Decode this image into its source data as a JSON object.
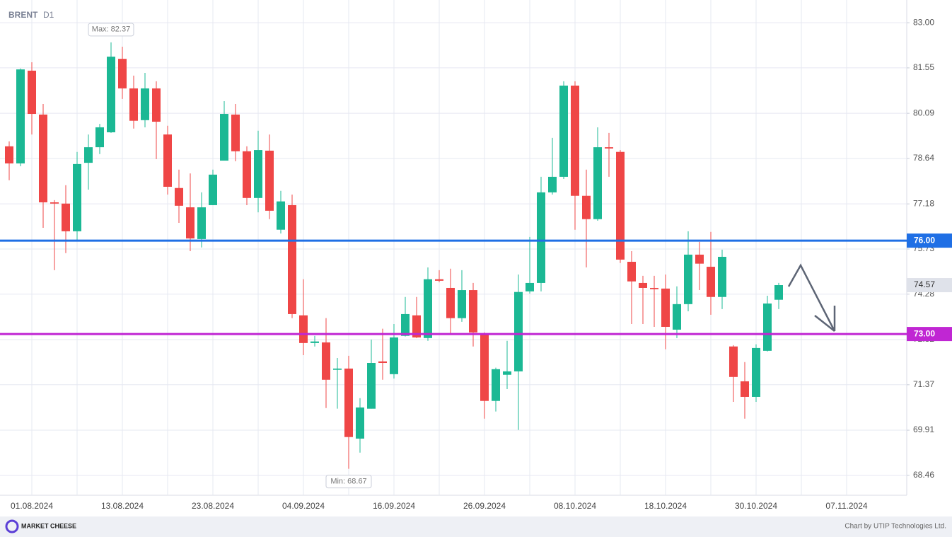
{
  "chart_data": {
    "type": "candlestick",
    "title": "BRENT",
    "subtitle": "D1",
    "categories": [
      null,
      null,
      "01.08.2024",
      null,
      null,
      null,
      null,
      null,
      null,
      null,
      "13.08.2024",
      null,
      null,
      null,
      null,
      null,
      null,
      null,
      "23.08.2024",
      null,
      null,
      null,
      null,
      null,
      null,
      null,
      "04.09.2024",
      null,
      null,
      null,
      null,
      null,
      null,
      null,
      "16.09.2024",
      null,
      null,
      null,
      null,
      null,
      null,
      null,
      "26.09.2024",
      null,
      null,
      null,
      null,
      null,
      null,
      null,
      "08.10.2024",
      null,
      null,
      null,
      null,
      null,
      null,
      null,
      "18.10.2024",
      null,
      null,
      null,
      null,
      null,
      null,
      null,
      "30.10.2024",
      null,
      null,
      null,
      null,
      null,
      null,
      null,
      "07.11.2024"
    ],
    "open": [
      79.03,
      78.48,
      81.46,
      80.05,
      77.23,
      77.19,
      76.3,
      78.5,
      79.0,
      79.48,
      81.84,
      80.89,
      79.87,
      80.89,
      79.41,
      77.69,
      77.07,
      76.05,
      77.14,
      78.57,
      80.05,
      78.87,
      77.37,
      78.89,
      76.35,
      77.14,
      73.6,
      72.71,
      72.73,
      71.85,
      71.89,
      69.64,
      70.6,
      72.12,
      71.71,
      72.94,
      73.6,
      72.87,
      74.76,
      74.48,
      73.51,
      74.41,
      72.98,
      70.85,
      71.69,
      71.8,
      74.37,
      74.64,
      77.55,
      78.05,
      80.98,
      77.44,
      76.69,
      79.0,
      78.85,
      75.32,
      74.64,
      74.48,
      74.46,
      73.14,
      73.96,
      75.55,
      75.16,
      74.19,
      72.6,
      71.48,
      70.98,
      72.46,
      74.1,
      null,
      null,
      null,
      null,
      null,
      null
    ],
    "high": [
      79.19,
      81.53,
      81.73,
      80.39,
      77.3,
      77.78,
      78.85,
      79.41,
      79.75,
      82.37,
      82.23,
      81.3,
      81.39,
      81.12,
      79.69,
      78.28,
      78.16,
      77.55,
      78.28,
      80.48,
      80.39,
      79.03,
      79.53,
      79.41,
      77.6,
      77.48,
      74.76,
      72.94,
      73.51,
      72.23,
      72.3,
      70.94,
      72.82,
      73.17,
      73.32,
      74.19,
      74.19,
      75.14,
      75.05,
      75.1,
      75.05,
      74.64,
      73.05,
      71.92,
      72.78,
      74.91,
      76.12,
      78.05,
      79.3,
      81.12,
      81.12,
      78.28,
      79.64,
      79.46,
      78.91,
      75.66,
      74.87,
      74.87,
      74.91,
      74.53,
      76.3,
      75.96,
      76.28,
      75.71,
      72.64,
      72.1,
      72.67,
      74.23,
      74.64,
      null,
      null,
      null,
      null,
      null,
      null
    ],
    "low": [
      77.94,
      78.39,
      79.41,
      76.41,
      75.05,
      75.6,
      76.0,
      77.64,
      78.78,
      79.46,
      80.55,
      79.6,
      79.64,
      78.62,
      77.48,
      76.57,
      75.66,
      75.78,
      77.14,
      78.57,
      78.55,
      77.14,
      76.91,
      76.69,
      76.23,
      73.51,
      72.32,
      72.6,
      70.62,
      70.6,
      68.67,
      69.19,
      70.6,
      71.53,
      71.57,
      72.92,
      72.87,
      72.78,
      74.66,
      73.01,
      73.39,
      72.6,
      70.28,
      70.51,
      71.23,
      69.92,
      74.3,
      74.37,
      77.48,
      77.98,
      76.35,
      75.14,
      76.64,
      78.05,
      75.28,
      73.32,
      73.32,
      73.23,
      72.51,
      72.87,
      73.73,
      74.41,
      73.62,
      73.8,
      70.82,
      70.28,
      70.82,
      72.44,
      73.8,
      null,
      null,
      null,
      null,
      null,
      null
    ],
    "close": [
      78.48,
      81.5,
      80.07,
      77.23,
      77.19,
      76.3,
      78.46,
      79.0,
      79.64,
      81.91,
      80.89,
      79.85,
      80.89,
      79.82,
      77.73,
      77.12,
      76.07,
      77.07,
      78.12,
      80.07,
      78.87,
      77.37,
      78.91,
      76.96,
      77.26,
      73.64,
      72.71,
      72.76,
      71.53,
      71.89,
      69.69,
      70.64,
      72.07,
      72.07,
      72.89,
      73.64,
      72.89,
      74.76,
      74.71,
      73.51,
      74.41,
      73.05,
      70.85,
      71.87,
      71.8,
      74.35,
      74.64,
      77.55,
      78.05,
      80.98,
      77.44,
      76.69,
      79.0,
      78.96,
      75.39,
      74.69,
      74.48,
      74.44,
      73.23,
      73.96,
      75.55,
      75.26,
      74.19,
      75.48,
      71.62,
      70.98,
      72.55,
      73.98,
      74.57,
      null,
      null,
      null,
      null,
      null,
      null
    ],
    "up_color": "#1bb894",
    "down_color": "#ef4646",
    "ylim": [
      67.82,
      83.73
    ],
    "yticks": [
      {
        "value": 83,
        "label": "83.00"
      },
      {
        "value": 81.55,
        "label": "81.55"
      },
      {
        "value": 80.09,
        "label": "80.09"
      },
      {
        "value": 78.64,
        "label": "78.64"
      },
      {
        "value": 77.18,
        "label": "77.18"
      },
      {
        "value": 75.73,
        "label": "75.73"
      },
      {
        "value": 74.28,
        "label": "74.28"
      },
      {
        "value": 72.82,
        "label": "72.82"
      },
      {
        "value": 71.37,
        "label": "71.37"
      },
      {
        "value": 69.91,
        "label": "69.91"
      },
      {
        "value": 68.46,
        "label": "68.46"
      }
    ],
    "grid": true,
    "levels": [
      {
        "value": 76,
        "label": "76.00",
        "color": "#1f6fe5"
      },
      {
        "value": 73,
        "label": "73.00",
        "color": "#c026d3"
      }
    ],
    "last_label": "74.57",
    "max_label": "Max: 82.37",
    "min_label": "Min: 68.67",
    "logo": "MARKET CHEESE",
    "credit": "Chart by UTIP Technologies Ltd."
  }
}
